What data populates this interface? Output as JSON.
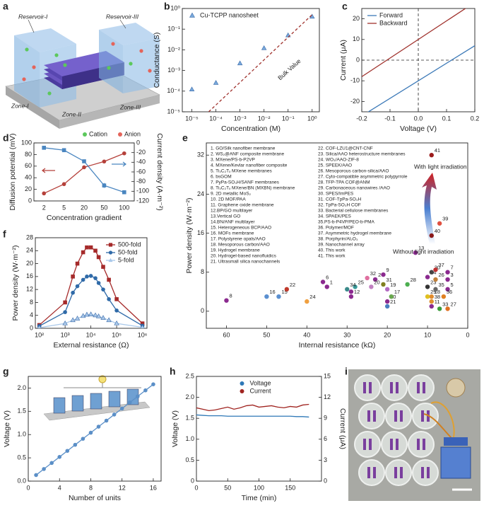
{
  "panel_labels": [
    "a",
    "b",
    "c",
    "d",
    "e",
    "f",
    "g",
    "h",
    "i"
  ],
  "diagram_a": {
    "reservoir_1": "Reservoir-I",
    "reservoir_3": "Reservoir-III",
    "zones": [
      "Zone-I",
      "Zone-II",
      "Zone-III"
    ],
    "legend": [
      "Cation",
      "Anion"
    ]
  },
  "chart_data": [
    {
      "type": "scatter",
      "xlog": true,
      "ylog": true,
      "xlim": [
        4e-06,
        2
      ],
      "ylim": [
        1e-05,
        1
      ],
      "xticks": [
        {
          "value": 1e-05,
          "label": "10⁻⁵"
        },
        {
          "value": 0.0001,
          "label": "10⁻⁴"
        },
        {
          "value": 0.001,
          "label": "10⁻³"
        },
        {
          "value": 0.01,
          "label": "10⁻²"
        },
        {
          "value": 0.1,
          "label": "10⁻¹"
        },
        {
          "value": 1,
          "label": "10⁰"
        }
      ],
      "yticks": [
        {
          "value": 1e-05,
          "label": "10⁻⁵"
        },
        {
          "value": 0.0001,
          "label": "10⁻⁴"
        },
        {
          "value": 0.001,
          "label": "10⁻³"
        },
        {
          "value": 0.01,
          "label": "10⁻²"
        },
        {
          "value": 0.1,
          "label": "10⁻¹"
        },
        {
          "value": 1,
          "label": "10⁰"
        }
      ],
      "xlabel": "Concentration (M)",
      "ylabel": "Conductance (S)",
      "legend": "upper left",
      "series": [
        {
          "name": "Cu-TCPP nanosheet",
          "color": "#79a9dc",
          "mode": "markers",
          "marker": "triangle",
          "x": [
            1e-05,
            0.0001,
            0.001,
            0.01,
            0.1,
            1
          ],
          "values": [
            0.00012,
            0.00025,
            0.0022,
            0.012,
            0.05,
            0.4
          ]
        },
        {
          "color": "#a0322d",
          "mode": "line",
          "dash": true,
          "x": [
            5e-05,
            1
          ],
          "values": [
            1e-05,
            0.5
          ]
        }
      ],
      "annotations": [
        "Bulk Value"
      ]
    },
    {
      "type": "line",
      "xlim": [
        -0.2,
        0.2
      ],
      "ylim": [
        -25,
        25
      ],
      "xticks": [
        -0.2,
        -0.1,
        {
          "value": 0,
          "label": "0.0"
        },
        0.1,
        0.2
      ],
      "yticks": [
        -20,
        -10,
        0,
        10,
        20
      ],
      "xlabel": "Voltage (V)",
      "ylabel": "Current (μA)",
      "legend": "upper left",
      "zero_lines": true,
      "series": [
        {
          "name": "Forward",
          "color": "#3d7ab8",
          "mode": "line",
          "x": [
            -0.2,
            0.2
          ],
          "values": [
            -27,
            7
          ]
        },
        {
          "name": "Backward",
          "color": "#a0322d",
          "mode": "line",
          "x": [
            -0.2,
            0.2
          ],
          "values": [
            -8,
            28
          ]
        }
      ]
    },
    {
      "type": "line",
      "categories": [
        "2",
        "5",
        "20",
        "50",
        "100"
      ],
      "ylim": [
        0,
        100
      ],
      "yticks": [
        0,
        20,
        40,
        60,
        80,
        100
      ],
      "y2lim": [
        -120,
        0
      ],
      "y2ticks": [
        0,
        -20,
        -40,
        -60,
        -80,
        -100,
        -120
      ],
      "xlabel": "Concentration gradient",
      "ylabel": "Diffusion potential (mV)",
      "y2label": "Current density (A·m⁻²)",
      "series": [
        {
          "color": "#b5403a",
          "mode": "lines+markers",
          "marker": "circle",
          "values": [
            13,
            29,
            58,
            68,
            82
          ]
        },
        {
          "color": "#4a86c0",
          "mode": "lines+markers",
          "marker": "square",
          "axis": "y2",
          "values": [
            -10,
            -15,
            -38,
            -88,
            -102
          ],
          "errors": [
            2,
            3,
            3,
            5,
            4
          ]
        }
      ]
    },
    {
      "type": "scatter",
      "xlim": [
        65,
        0
      ],
      "ylim": [
        -3.5,
        34.5
      ],
      "xticks": [
        60,
        50,
        40,
        30,
        20,
        10,
        0
      ],
      "yticks": [
        0,
        8,
        16,
        24,
        32
      ],
      "xlabel": "Internal resistance (kΩ)",
      "ylabel": "Power density (W·m⁻²)",
      "series": [
        {
          "mode": "markers",
          "marker": "circle",
          "x": [
            35,
            23,
            5,
            29,
            5,
            36,
            5,
            60,
            21,
            20,
            9,
            29,
            13,
            10,
            47,
            50,
            19,
            9,
            20,
            24,
            20,
            45,
            10,
            40,
            28,
            8,
            5,
            15,
            10,
            9,
            21,
            25,
            7,
            30,
            8,
            6,
            8,
            9,
            7,
            9,
            9
          ],
          "values": [
            5,
            6.5,
            6.5,
            4,
            4.5,
            6,
            8,
            2.2,
            7.5,
            2,
            1,
            3,
            12,
            7,
            3,
            3,
            3,
            3,
            4.5,
            5,
            1,
            4.5,
            5,
            2,
            5,
            6.5,
            0.5,
            5.5,
            3,
            8,
            5.5,
            6.8,
            0.5,
            4.5,
            4.5,
            3,
            8.5,
            2,
            18,
            15.5,
            32
          ],
          "colors": [
            "#8b2a8f",
            "#8b2a8f",
            "#8b2a8f",
            "#8b2a8f",
            "#8b2a8f",
            "#8b2a8f",
            "#8b2a8f",
            "#8b2a8f",
            "#8b2a8f",
            "#8b2a8f",
            "#8b2a8f",
            "#8b2a8f",
            "#8b2a8f",
            "#8b2a8f",
            "#5a8fd0",
            "#5a8fd0",
            "#6aa84f",
            "#e08a2c",
            "#b36bc2",
            "#c080c0",
            "#4a7fc0",
            "#c0392b",
            "#333333",
            "#f0a040",
            "#3a9a9a",
            "#c0803a",
            "#e07020",
            "#4caf50",
            "#e0c020",
            "#444444",
            "#808020",
            "#e070a0",
            "#3a9a3a",
            "#3a8a8a",
            "#666666",
            "#e08020",
            "#c03030",
            "#e09030",
            "#e05040",
            "#8b1a1a",
            "#9b1b1b"
          ],
          "point_labels": [
            "1",
            "2",
            "3",
            "4",
            "5",
            "6",
            "7",
            "8",
            "9",
            "10",
            "11",
            "12",
            "13",
            "14",
            "15",
            "16",
            "17",
            "18",
            "19",
            "20",
            "21",
            "22",
            "23",
            "24",
            "25",
            "26",
            "27",
            "28",
            "29",
            "30",
            "31",
            "32",
            "33",
            "34",
            "35",
            "36",
            "37",
            "38",
            "39",
            "40",
            "41"
          ]
        }
      ],
      "legend_items": [
        "1. GO/Silk nanofiber membrane",
        "2. WS₂@ANF composite membrane",
        "3. MXene/PS-b-P2VP",
        "4. MXene/Kevlar nanofiber composite",
        "5. Ti₃C₂Tₓ MXene membranes",
        "6. bsGOM",
        "7. PyPa-SO₃H/SANF membranes",
        "8. Ti₃C₂Tₓ MXene/BN (MXBN) membrane",
        "9. 2D metallic MoS₂",
        "10. 2D MOF/PAA",
        "11. Graphene oxide membrane",
        "12.BP/GO multilayer",
        "13.Vertical GO",
        "14.BN/ANF multilayer",
        "15. Heterogeneous BCP/AAO",
        "16. MOFs membrane",
        "17. Polystyrene opals/AAO",
        "18. Mesoporous carbon/AAO",
        "19. Hydrogel membrane",
        "20. Hydrogel-based nanofluidics",
        "21. Ultrasmall silica nanochannels",
        "22. COF-LZU1@CNT-CNF",
        "23. Silica/AAO heterostructure membranes",
        "24. WO₃/AAO-ZIF-8",
        "25. SPEEK/AAO",
        "26. Mesoporous carbon-silica/AAO",
        "27. Cyto-compatible asymmetric polypyrrole",
        "28. TFP-TPA COF@ANM",
        "29. Carbonaceous nanowires /AAO",
        "30. SPES/ImPES",
        "31. COF-TpPa-SO₃H",
        "32. TpPa-SO₃H COF",
        "33. Bacterial cellulose membranes",
        "34. SPAEK/PES",
        "35.PS-b-P4VP/PEO-b-PMA",
        "36. Polymer/MOF",
        "37. Asymmetric hydrogel membrane",
        "38. Porphyrin/Al₂O₃",
        "39. Nanochannel array",
        "40. This work",
        "41. This work"
      ],
      "legend_colors": [
        "#8b2a8f",
        "#8b2a8f",
        "#8b2a8f",
        "#8b2a8f",
        "#8b2a8f",
        "#8b2a8f",
        "#8b2a8f",
        "#8b2a8f",
        "#8b2a8f",
        "#8b2a8f",
        "#8b2a8f",
        "#8b2a8f",
        "#8b2a8f",
        "#8b2a8f",
        "#222222",
        "#222222",
        "#222222",
        "#222222",
        "#222222",
        "#222222",
        "#222222",
        "#222222",
        "#222222",
        "#222222",
        "#222222",
        "#222222",
        "#222222",
        "#222222",
        "#222222",
        "#222222",
        "#222222",
        "#222222",
        "#222222",
        "#222222",
        "#222222",
        "#222222",
        "#222222",
        "#222222",
        "#222222",
        "#222222",
        "#222222"
      ],
      "annotations": [
        "With light irradiation",
        "Without light irradiation"
      ]
    },
    {
      "type": "line",
      "xlog": true,
      "xlim": [
        70,
        1500000
      ],
      "ylim": [
        0,
        28
      ],
      "xticks": [
        {
          "value": 100,
          "label": "10²"
        },
        {
          "value": 1000,
          "label": "10³"
        },
        {
          "value": 10000,
          "label": "10⁴"
        },
        {
          "value": 100000,
          "label": "10⁵"
        },
        {
          "value": 1000000,
          "label": "10⁶"
        }
      ],
      "yticks": [
        0,
        4,
        8,
        12,
        16,
        20,
        24,
        28
      ],
      "xlabel": "External resistance (Ω)",
      "ylabel": "Power density (W·m⁻²)",
      "legend": "upper right",
      "x": [
        100,
        1000,
        2000,
        3000,
        5000,
        7000,
        10000,
        15000,
        20000,
        30000,
        50000,
        100000,
        1000000
      ],
      "series": [
        {
          "name": "500-fold",
          "color": "#a52a2a",
          "mode": "lines+markers",
          "marker": "square",
          "values": [
            1,
            8,
            16,
            20,
            23.5,
            25,
            25,
            24,
            22,
            19,
            15,
            9,
            1.5
          ]
        },
        {
          "name": "50-fold",
          "color": "#2f6aa8",
          "mode": "lines+markers",
          "marker": "circle",
          "values": [
            0.7,
            5,
            11,
            13,
            15,
            16,
            16.2,
            15.5,
            14,
            12,
            9,
            5.5,
            0.8
          ]
        },
        {
          "name": "5-fold",
          "color": "#a9c8ea",
          "mode": "lines+markers",
          "marker": "triangle",
          "values": [
            0.2,
            1.5,
            2.5,
            3,
            3.8,
            4.2,
            4.3,
            4,
            3.7,
            3.2,
            2.5,
            1.5,
            0.3
          ]
        }
      ]
    },
    {
      "type": "line",
      "xlim": [
        0,
        17
      ],
      "ylim": [
        0,
        2.25
      ],
      "xticks": [
        0,
        4,
        8,
        12,
        16
      ],
      "yticks": [
        {
          "value": 0,
          "label": "0.0"
        },
        0.5,
        {
          "value": 1,
          "label": "1.0"
        },
        1.5,
        {
          "value": 2,
          "label": "2.0"
        }
      ],
      "xlabel": "Number of units",
      "ylabel": "Voltage (V)",
      "x": [
        1,
        2,
        3,
        4,
        5,
        6,
        7,
        8,
        9,
        10,
        11,
        12,
        13,
        14,
        15,
        16
      ],
      "series": [
        {
          "color": "#5b8fc7",
          "mode": "lines+markers",
          "marker": "circle",
          "values": [
            0.13,
            0.26,
            0.39,
            0.52,
            0.65,
            0.78,
            0.91,
            1.04,
            1.17,
            1.3,
            1.43,
            1.56,
            1.69,
            1.82,
            1.95,
            2.08
          ]
        }
      ]
    },
    {
      "type": "line",
      "xlim": [
        0,
        200
      ],
      "ylim": [
        0,
        2.5
      ],
      "y2lim": [
        0,
        15
      ],
      "xticks": [
        0,
        50,
        100,
        150
      ],
      "yticks": [
        0,
        0.5,
        {
          "value": 1,
          "label": "1.0"
        },
        1.5,
        {
          "value": 2,
          "label": "2.0"
        },
        2.5
      ],
      "y2ticks": [
        0,
        3,
        6,
        9,
        12,
        15
      ],
      "xlabel": "Time (min)",
      "ylabel": "Voltage (V)",
      "y2label": "Current (μA)",
      "legend": "upper center",
      "x": [
        0,
        10,
        20,
        30,
        40,
        50,
        60,
        70,
        80,
        90,
        100,
        110,
        120,
        130,
        140,
        150,
        160,
        170,
        180
      ],
      "series": [
        {
          "name": "Voltage",
          "color": "#2e78b7",
          "mode": "line",
          "marker": "circle",
          "values": [
            1.58,
            1.57,
            1.56,
            1.56,
            1.56,
            1.55,
            1.55,
            1.55,
            1.55,
            1.55,
            1.55,
            1.55,
            1.55,
            1.55,
            1.55,
            1.55,
            1.54,
            1.54,
            1.53
          ]
        },
        {
          "name": "Current",
          "color": "#a02420",
          "mode": "line",
          "marker": "circle",
          "axis": "y2",
          "values": [
            10.5,
            10.3,
            10.1,
            10.2,
            10.4,
            10.6,
            10.3,
            10.5,
            10.8,
            10.9,
            10.6,
            10.7,
            10.8,
            10.6,
            10.5,
            10.7,
            10.6,
            10.9,
            11.0
          ]
        }
      ]
    }
  ]
}
